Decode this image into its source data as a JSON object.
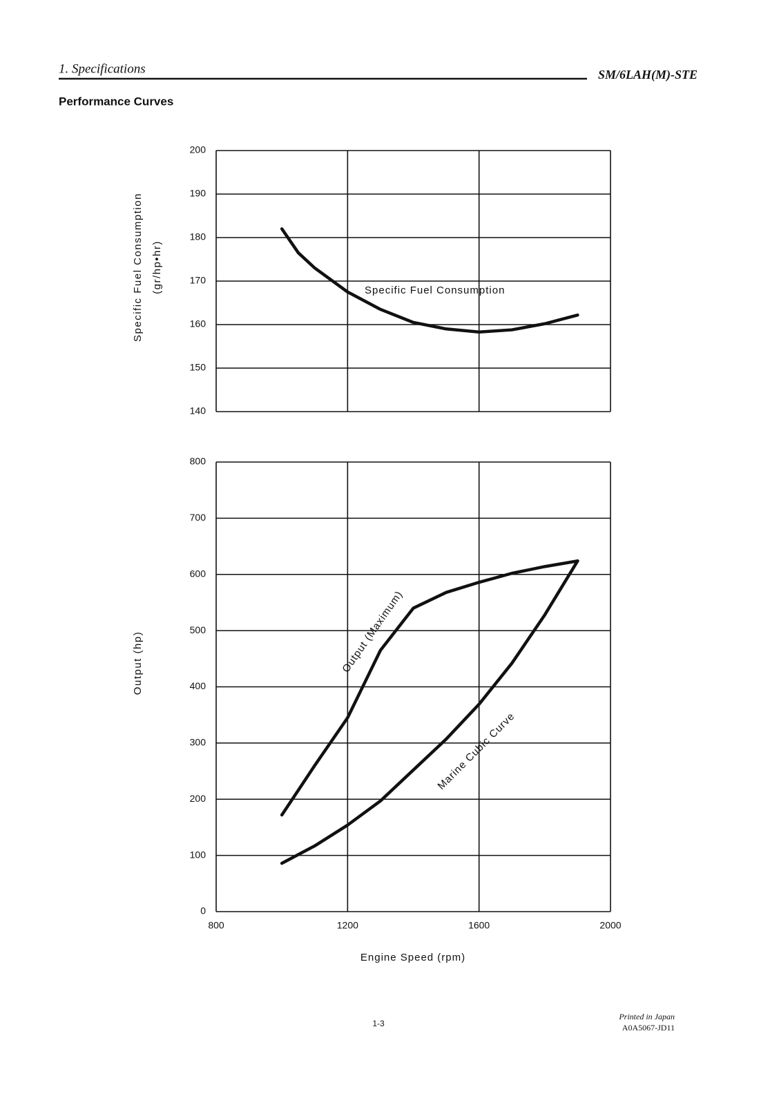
{
  "header": {
    "section": "1. Specifications",
    "model": "SM/6LAH(M)-STE",
    "subtitle": "Performance Curves"
  },
  "chart_data": [
    {
      "type": "line",
      "ylabel": [
        "Specific Fuel Consumption",
        "(gr/hp•hr)"
      ],
      "xlim": [
        800,
        2000
      ],
      "xticks": [
        800,
        1200,
        1600,
        2000
      ],
      "ylim": [
        140,
        200
      ],
      "yticks": [
        140,
        150,
        160,
        170,
        180,
        190,
        200
      ],
      "grid": true,
      "series": [
        {
          "name": "Specific Fuel Consumption",
          "color": "#111111",
          "x": [
            1000,
            1050,
            1100,
            1200,
            1300,
            1400,
            1500,
            1600,
            1700,
            1800,
            1900
          ],
          "values": [
            182,
            176.5,
            173,
            167.5,
            163.5,
            160.5,
            159,
            158.3,
            158.8,
            160.2,
            162.2
          ]
        }
      ]
    },
    {
      "type": "line",
      "ylabel": [
        "Output (hp)"
      ],
      "xlabel": "Engine Speed (rpm)",
      "xlim": [
        800,
        2000
      ],
      "xticks": [
        800,
        1200,
        1600,
        2000
      ],
      "ylim": [
        0,
        800
      ],
      "yticks": [
        0,
        100,
        200,
        300,
        400,
        500,
        600,
        700,
        800
      ],
      "grid": true,
      "series": [
        {
          "name": "Output (Maximum)",
          "color": "#111111",
          "x": [
            1000,
            1100,
            1200,
            1250,
            1300,
            1400,
            1500,
            1600,
            1700,
            1800,
            1900
          ],
          "values": [
            172,
            260,
            345,
            405,
            465,
            540,
            568,
            586,
            602,
            614,
            624
          ]
        },
        {
          "name": "Marine Cubic Curve",
          "color": "#111111",
          "x": [
            1000,
            1100,
            1200,
            1300,
            1400,
            1500,
            1600,
            1700,
            1800,
            1900
          ],
          "values": [
            86,
            117,
            154,
            197,
            252,
            307,
            369,
            442,
            528,
            624
          ]
        }
      ]
    }
  ],
  "footer": {
    "page": "1-3",
    "printed": "Printed in Japan",
    "code": "A0A5067-JD11"
  }
}
